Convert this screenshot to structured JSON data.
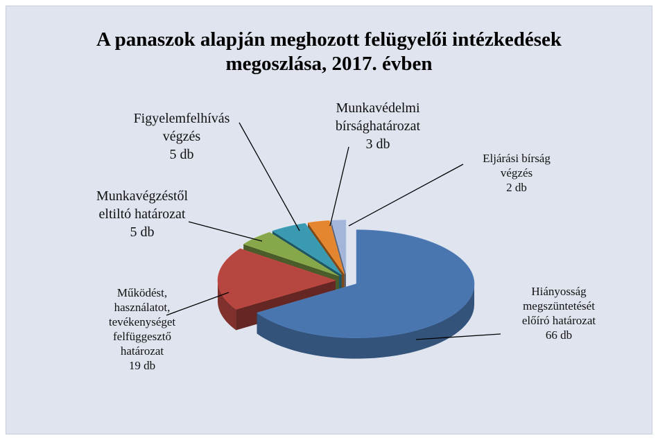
{
  "chart_data": {
    "type": "pie",
    "title": "A panaszok alapján meghozott felügyelői intézkedések\nmegoszlása, 2017. évben",
    "categories": [
      "Hiányosság\nmegszüntetését\nelőíró határozat",
      "Működést,\nhasználatot,\ntevékenységet\nfelfüggesztő\nhatározat",
      "Munkavégzéstől\neltiltó határozat",
      "Figyelemfelhívás\nvégzés",
      "Munkavédelmi\nbírsághatározat",
      "Eljárási bírság\nvégzés"
    ],
    "values": [
      66,
      19,
      5,
      5,
      3,
      2
    ],
    "value_labels": [
      "66 db",
      "19 db",
      "5 db",
      "5 db",
      "3 db",
      "2 db"
    ],
    "colors": [
      "#4a76b0",
      "#b84640",
      "#87a84a",
      "#3a9ab2",
      "#e4862f",
      "#a3b6da"
    ],
    "three_d": true,
    "exploded": true
  }
}
